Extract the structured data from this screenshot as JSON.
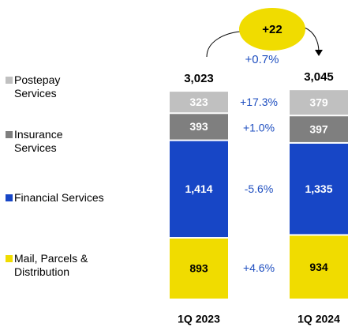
{
  "chart_data": {
    "type": "stacked-bar",
    "categories": [
      "1Q 2023",
      "1Q 2024"
    ],
    "series": [
      {
        "name": "Mail, Parcels &\nDistribution",
        "color": "#f0dc00",
        "values": [
          893,
          934
        ],
        "value_labels": [
          "893",
          "934"
        ],
        "change": "+4.6%"
      },
      {
        "name": "Financial Services",
        "color": "#1746c6",
        "values": [
          1414,
          1335
        ],
        "value_labels": [
          "1,414",
          "1,335"
        ],
        "change": "-5.6%"
      },
      {
        "name": "Insurance\nServices",
        "color": "#7f7f7f",
        "values": [
          393,
          397
        ],
        "value_labels": [
          "393",
          "397"
        ],
        "change": "+1.0%"
      },
      {
        "name": "Postepay\nServices",
        "color": "#c0c0c0",
        "values": [
          323,
          379
        ],
        "value_labels": [
          "323",
          "379"
        ],
        "change": "+17.3%"
      }
    ],
    "totals": {
      "values": [
        3023,
        3045
      ],
      "value_labels": [
        "3,023",
        "3,045"
      ]
    },
    "delta": {
      "label": "+22",
      "change": "+0.7%"
    }
  }
}
